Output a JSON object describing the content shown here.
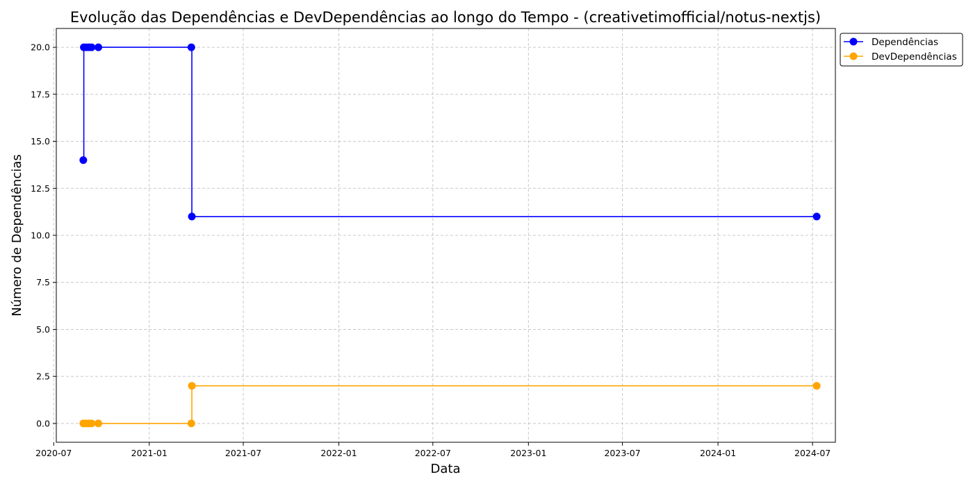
{
  "chart_data": {
    "type": "line",
    "title": "Evolução das Dependências e DevDependências ao longo do Tempo - (creativetimofficial/notus-nextjs)",
    "xlabel": "Data",
    "ylabel": "Número de Dependências",
    "x_axis_type": "date",
    "xlim": [
      "2020-07-06",
      "2024-08-14"
    ],
    "ylim": [
      -1,
      21
    ],
    "x_ticks": [
      "2020-07",
      "2021-01",
      "2021-07",
      "2022-01",
      "2022-07",
      "2023-01",
      "2023-07",
      "2024-01",
      "2024-07"
    ],
    "y_ticks": [
      "0.0",
      "2.5",
      "5.0",
      "7.5",
      "10.0",
      "12.5",
      "15.0",
      "17.5",
      "20.0"
    ],
    "grid": true,
    "legend_position": "outside-top-right",
    "step_style": "post",
    "series": [
      {
        "name": "Dependências",
        "color": "#0000ff",
        "points": [
          {
            "x": "2020-08-27",
            "y": 14
          },
          {
            "x": "2020-08-28",
            "y": 20
          },
          {
            "x": "2020-09-02",
            "y": 20
          },
          {
            "x": "2020-09-07",
            "y": 20
          },
          {
            "x": "2020-09-12",
            "y": 20
          },
          {
            "x": "2020-09-25",
            "y": 20
          },
          {
            "x": "2021-03-23",
            "y": 20
          },
          {
            "x": "2021-03-24",
            "y": 11
          },
          {
            "x": "2024-07-09",
            "y": 11
          }
        ]
      },
      {
        "name": "DevDependências",
        "color": "#ffa500",
        "points": [
          {
            "x": "2020-08-27",
            "y": 0
          },
          {
            "x": "2020-08-28",
            "y": 0
          },
          {
            "x": "2020-09-02",
            "y": 0
          },
          {
            "x": "2020-09-07",
            "y": 0
          },
          {
            "x": "2020-09-12",
            "y": 0
          },
          {
            "x": "2020-09-25",
            "y": 0
          },
          {
            "x": "2021-03-23",
            "y": 0
          },
          {
            "x": "2021-03-24",
            "y": 2
          },
          {
            "x": "2024-07-09",
            "y": 2
          }
        ]
      }
    ]
  }
}
